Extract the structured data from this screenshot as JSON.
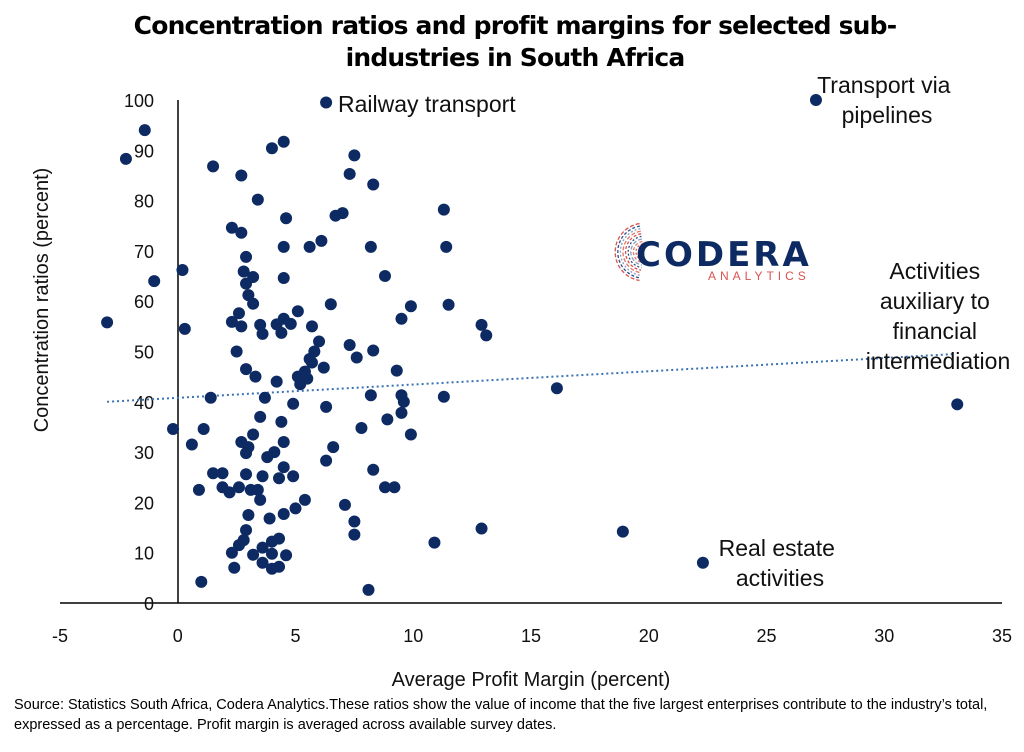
{
  "chart_data": {
    "type": "scatter",
    "title": "Concentration ratios and profit margins for selected sub-industries in South Africa",
    "xlabel": "Average Profit Margin (percent)",
    "ylabel": "Concentration ratios (percent)",
    "xlim": [
      -5,
      35
    ],
    "ylim": [
      0,
      100
    ],
    "xticks": [
      "-5",
      "0",
      "5",
      "10",
      "15",
      "20",
      "25",
      "30",
      "35"
    ],
    "yticks": [
      "0",
      "10",
      "20",
      "30",
      "40",
      "50",
      "60",
      "70",
      "80",
      "90",
      "100"
    ],
    "marker_color": "#0d2a63",
    "trendline": {
      "style": "dotted",
      "color": "#3a72b5",
      "x": [
        -3,
        33
      ],
      "y": [
        40,
        49.5
      ]
    },
    "annotations": [
      {
        "text": "Railway transport",
        "x": 6.3,
        "y": 99.5
      },
      {
        "text": "Transport via pipelines",
        "x": 27.1,
        "y": 100
      },
      {
        "text": "Activities auxiliary to financial intermediation",
        "x": 33.1,
        "y": 39.5
      },
      {
        "text": "Real estate activities",
        "x": 22.3,
        "y": 8
      }
    ],
    "points": [
      [
        6.3,
        99.5
      ],
      [
        27.1,
        100
      ],
      [
        33.1,
        39.5
      ],
      [
        22.3,
        8
      ],
      [
        18.9,
        14.2
      ],
      [
        16.1,
        42.7
      ],
      [
        -1.4,
        94
      ],
      [
        -2.2,
        88.3
      ],
      [
        -1,
        64
      ],
      [
        -3,
        55.8
      ],
      [
        0.2,
        66.2
      ],
      [
        0.3,
        54.5
      ],
      [
        -0.2,
        34.6
      ],
      [
        0.6,
        31.5
      ],
      [
        1.5,
        86.8
      ],
      [
        1.1,
        34.6
      ],
      [
        1.4,
        40.8
      ],
      [
        1.5,
        25.8
      ],
      [
        1.9,
        25.8
      ],
      [
        0.9,
        22.5
      ],
      [
        1.9,
        23
      ],
      [
        2.2,
        22
      ],
      [
        1,
        4.2
      ],
      [
        2.3,
        74.6
      ],
      [
        2.3,
        55.9
      ],
      [
        2.6,
        57.6
      ],
      [
        2.7,
        73.6
      ],
      [
        2.7,
        85
      ],
      [
        2.8,
        65.9
      ],
      [
        2.9,
        63.5
      ],
      [
        2.9,
        68.8
      ],
      [
        3,
        61.2
      ],
      [
        2.5,
        50
      ],
      [
        2.7,
        55
      ],
      [
        2.9,
        46.5
      ],
      [
        3.2,
        59.5
      ],
      [
        3.2,
        64.8
      ],
      [
        3.4,
        80.2
      ],
      [
        3.5,
        55.3
      ],
      [
        3.6,
        53.5
      ],
      [
        3.7,
        40.8
      ],
      [
        3.5,
        37
      ],
      [
        3.3,
        45
      ],
      [
        3.2,
        33.5
      ],
      [
        3,
        31
      ],
      [
        2.9,
        29.8
      ],
      [
        2.7,
        32
      ],
      [
        2.9,
        25.6
      ],
      [
        3.1,
        22.5
      ],
      [
        3,
        17.5
      ],
      [
        2.9,
        14.5
      ],
      [
        2.8,
        12.5
      ],
      [
        2.6,
        11.5
      ],
      [
        2.3,
        10
      ],
      [
        2.4,
        7
      ],
      [
        3.2,
        9.6
      ],
      [
        3.6,
        11
      ],
      [
        3.6,
        8
      ],
      [
        2.6,
        23
      ],
      [
        3.8,
        29
      ],
      [
        3.6,
        25.2
      ],
      [
        3.4,
        22.5
      ],
      [
        3.5,
        20.5
      ],
      [
        4,
        90.4
      ],
      [
        4.5,
        91.7
      ],
      [
        4.6,
        76.5
      ],
      [
        4.5,
        70.8
      ],
      [
        4.5,
        64.6
      ],
      [
        4.2,
        55.4
      ],
      [
        4.5,
        56.5
      ],
      [
        4.8,
        55.5
      ],
      [
        4.4,
        53.7
      ],
      [
        5.1,
        58
      ],
      [
        4.2,
        44
      ],
      [
        4.4,
        36
      ],
      [
        4.5,
        32
      ],
      [
        4.1,
        30
      ],
      [
        4.5,
        27
      ],
      [
        4.3,
        24.8
      ],
      [
        4.9,
        25.2
      ],
      [
        4.9,
        39.6
      ],
      [
        5.2,
        43.5
      ],
      [
        5.1,
        45
      ],
      [
        5.4,
        46
      ],
      [
        5.6,
        48.5
      ],
      [
        5.8,
        50
      ],
      [
        5.7,
        47.8
      ],
      [
        5.5,
        44.6
      ],
      [
        5.6,
        70.8
      ],
      [
        6.1,
        72
      ],
      [
        6.2,
        46.8
      ],
      [
        5.7,
        55
      ],
      [
        6,
        52
      ],
      [
        6.3,
        39
      ],
      [
        5.4,
        20.5
      ],
      [
        5,
        18.8
      ],
      [
        4.5,
        17.7
      ],
      [
        4.3,
        12.8
      ],
      [
        4,
        12.2
      ],
      [
        4.3,
        7.2
      ],
      [
        4,
        6.8
      ],
      [
        4,
        9.8
      ],
      [
        4.6,
        9.5
      ],
      [
        3.9,
        16.8
      ],
      [
        6.5,
        59.4
      ],
      [
        6.7,
        77
      ],
      [
        7,
        77.5
      ],
      [
        7.3,
        85.3
      ],
      [
        7.5,
        89
      ],
      [
        7.3,
        51.3
      ],
      [
        7.6,
        48.8
      ],
      [
        6.3,
        28.3
      ],
      [
        6.6,
        31
      ],
      [
        7.1,
        19.5
      ],
      [
        7.5,
        16.2
      ],
      [
        7.5,
        13.6
      ],
      [
        7.8,
        34.8
      ],
      [
        8.3,
        83.2
      ],
      [
        8.2,
        70.8
      ],
      [
        8.8,
        65
      ],
      [
        8.3,
        50.2
      ],
      [
        8.2,
        41.3
      ],
      [
        8.3,
        26.5
      ],
      [
        8.8,
        23
      ],
      [
        8.9,
        36.5
      ],
      [
        9.2,
        23
      ],
      [
        8.1,
        2.6
      ],
      [
        9.3,
        46.2
      ],
      [
        9.5,
        56.5
      ],
      [
        9.9,
        59
      ],
      [
        9.5,
        37.8
      ],
      [
        9.5,
        41.3
      ],
      [
        9.6,
        40
      ],
      [
        9.9,
        33.5
      ],
      [
        10.9,
        12
      ],
      [
        11.3,
        78.2
      ],
      [
        11.4,
        70.8
      ],
      [
        11.5,
        59.3
      ],
      [
        11.3,
        41
      ],
      [
        12.9,
        55.3
      ],
      [
        13.1,
        53.2
      ],
      [
        12.9,
        14.8
      ]
    ]
  },
  "source_note": "Source: Statistics South Africa, Codera Analytics.These ratios show the value of income that the five largest enterprises contribute to the industry’s total, expressed as a percentage. Profit margin is averaged across available survey dates.",
  "logo": {
    "name": "CODERA",
    "tagline": "ANALYTICS",
    "color": "#0d2a63",
    "accent": "#d9534f"
  }
}
